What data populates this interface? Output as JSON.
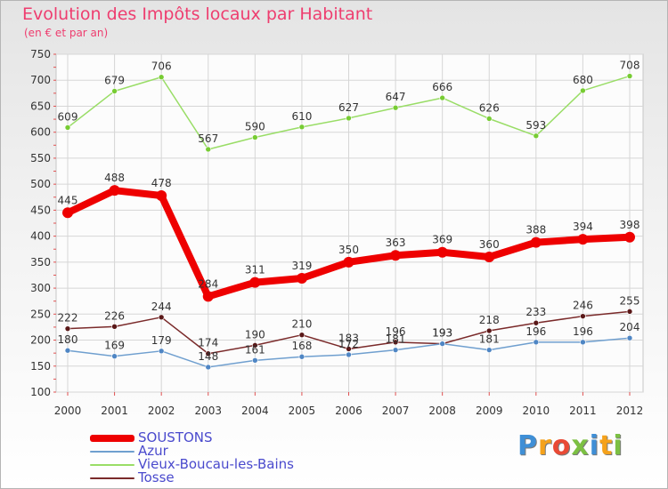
{
  "title": "Evolution des Impôts locaux par Habitant",
  "subtitle": "(en € et par an)",
  "chart_data": {
    "type": "line",
    "title": "Evolution des Impôts locaux par Habitant",
    "subtitle": "(en € et par an)",
    "xlabel": "",
    "ylabel": "",
    "categories": [
      "2000",
      "2001",
      "2002",
      "2003",
      "2004",
      "2005",
      "2006",
      "2007",
      "2008",
      "2009",
      "2010",
      "2011",
      "2012"
    ],
    "ylim": [
      100,
      750
    ],
    "yticks": [
      100,
      150,
      200,
      250,
      300,
      350,
      400,
      450,
      500,
      550,
      600,
      650,
      700,
      750
    ],
    "grid": true,
    "legend_position": "bottom-left",
    "series": [
      {
        "name": "Vieux-Boucau-les-Bains",
        "color": "#99dd66",
        "dot": "#77cc33",
        "values": [
          609,
          679,
          706,
          567,
          590,
          610,
          627,
          647,
          666,
          626,
          593,
          680,
          708
        ],
        "labels": [
          "609",
          "679",
          "706",
          "567",
          "590",
          "610",
          "627",
          "647",
          "666",
          "626",
          "593",
          "680",
          "708"
        ]
      },
      {
        "name": "Tosse",
        "color": "#7a2a2a",
        "dot": "#5a1818",
        "values": [
          222,
          226,
          244,
          174,
          190,
          210,
          183,
          196,
          193,
          218,
          233,
          246,
          255
        ],
        "labels": [
          "222",
          "226",
          "244",
          "174",
          "190",
          "210",
          "183",
          "196",
          "193",
          "218",
          "233",
          "246",
          "255"
        ]
      },
      {
        "name": "Azur",
        "color": "#6f9fcf",
        "dot": "#4f86c4",
        "values": [
          180,
          169,
          179,
          148,
          161,
          168,
          172,
          181,
          193,
          181,
          196,
          196,
          204
        ],
        "labels": [
          "180",
          "169",
          "179",
          "148",
          "161",
          "168",
          "172",
          "181",
          "193",
          "181",
          "196",
          "196",
          "204"
        ]
      },
      {
        "name": "SOUSTONS",
        "color": "#ee0000",
        "dot": "#ee0000",
        "values": [
          445,
          488,
          478,
          284,
          311,
          319,
          350,
          363,
          369,
          360,
          388,
          394,
          398
        ],
        "labels": [
          "445",
          "488",
          "478",
          "284",
          "311",
          "319",
          "350",
          "363",
          "369",
          "360",
          "388",
          "394",
          "398"
        ]
      }
    ]
  },
  "legend": {
    "items": [
      {
        "label": "SOUSTONS",
        "color": "#ee0000"
      },
      {
        "label": "Azur",
        "color": "#6f9fcf"
      },
      {
        "label": "Vieux-Boucau-les-Bains",
        "color": "#99dd66"
      },
      {
        "label": "Tosse",
        "color": "#7a2a2a"
      }
    ]
  },
  "logo": {
    "text": "Proxiti",
    "letters": [
      {
        "char": "P",
        "color": "#3f8fd6"
      },
      {
        "char": "r",
        "color": "#f5a21b"
      },
      {
        "char": "o",
        "color": "#e94a35"
      },
      {
        "char": "x",
        "color": "#7cc043"
      },
      {
        "char": "i",
        "color": "#3f8fd6"
      },
      {
        "char": "t",
        "color": "#f5a21b"
      },
      {
        "char": "i",
        "color": "#7cc043"
      }
    ]
  }
}
